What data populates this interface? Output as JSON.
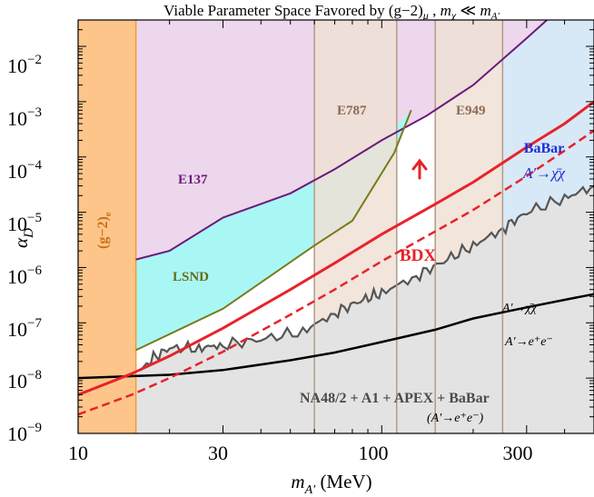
{
  "chart_data": {
    "type": "line",
    "title": "Viable Parameter Space Favored by (g−2)μ ,   mχ ≪ m A′",
    "xlabel": "mA′ (MeV)",
    "ylabel": "αD",
    "xscale": "log",
    "yscale": "log",
    "xlim": [
      10,
      500
    ],
    "ylim": [
      1e-09,
      0.03
    ],
    "x_ticks": [
      {
        "value": 10,
        "label": "10"
      },
      {
        "value": 30,
        "label": "30"
      },
      {
        "value": 100,
        "label": "100"
      },
      {
        "value": 300,
        "label": "300"
      }
    ],
    "y_ticks": [
      {
        "value": 1e-09,
        "base": "10",
        "exp": "−9"
      },
      {
        "value": 1e-08,
        "base": "10",
        "exp": "−8"
      },
      {
        "value": 1e-07,
        "base": "10",
        "exp": "−7"
      },
      {
        "value": 1e-06,
        "base": "10",
        "exp": "−6"
      },
      {
        "value": 1e-05,
        "base": "10",
        "exp": "−5"
      },
      {
        "value": 0.0001,
        "base": "10",
        "exp": "−4"
      },
      {
        "value": 0.001,
        "base": "10",
        "exp": "−3"
      },
      {
        "value": 0.01,
        "base": "10",
        "exp": "−2"
      }
    ],
    "regions": [
      {
        "name": "(g−2)e",
        "color": "#fdc58a",
        "edge": "#f29a33",
        "x_range": [
          10,
          15.5
        ]
      },
      {
        "name": "E137",
        "color": "#ecd7ec",
        "boundary": [
          [
            15.5,
            1.4e-06
          ],
          [
            20,
            2e-06
          ],
          [
            30,
            8e-06
          ],
          [
            50,
            2.2e-05
          ],
          [
            70,
            6e-05
          ],
          [
            100,
            0.0002
          ],
          [
            140,
            0.00055
          ],
          [
            200,
            0.002
          ],
          [
            300,
            0.014
          ],
          [
            350,
            0.03
          ]
        ]
      },
      {
        "name": "LSND",
        "color": "#a9f7f5",
        "boundary": [
          [
            15.5,
            3.2e-08
          ],
          [
            30,
            1.8e-07
          ],
          [
            60,
            2.5e-06
          ],
          [
            80,
            7e-06
          ],
          [
            110,
            0.00012
          ],
          [
            125,
            0.0007
          ]
        ]
      },
      {
        "name": "BaBar A′→χ̄χ",
        "color": "#d7e8f7",
        "x_range": [
          250,
          500
        ]
      },
      {
        "name": "E787",
        "color": "#efe0d6",
        "edge": "#b59a86",
        "x_range": [
          60,
          112
        ]
      },
      {
        "name": "E949",
        "color": "#efe0d6",
        "edge": "#b59a86",
        "x_range": [
          150,
          250
        ]
      },
      {
        "name": "NA48/2 + A1 + APEX + BaBar (A′→e⁺e⁻)",
        "color": "#e3e3e3",
        "boundary": [
          [
            10,
            1e-08
          ],
          [
            15.5,
            1.1e-08
          ],
          [
            17,
            2e-08
          ],
          [
            20,
            3.5e-08
          ],
          [
            25,
            3.5e-08
          ],
          [
            30,
            4e-08
          ],
          [
            40,
            5e-08
          ],
          [
            55,
            7e-08
          ],
          [
            70,
            1.5e-07
          ],
          [
            85,
            2.5e-07
          ],
          [
            100,
            3.5e-07
          ],
          [
            130,
            7e-07
          ],
          [
            160,
            1.3e-06
          ],
          [
            200,
            2.5e-06
          ],
          [
            250,
            5e-06
          ],
          [
            300,
            1e-05
          ],
          [
            400,
            1.8e-05
          ],
          [
            500,
            3e-05
          ]
        ]
      }
    ],
    "series": [
      {
        "name": "BDX",
        "color": "#e8222a",
        "style": "solid",
        "x": [
          10,
          15,
          20,
          30,
          50,
          70,
          100,
          150,
          200,
          300,
          400,
          500
        ],
        "y": [
          5e-09,
          1.2e-08,
          2.5e-08,
          8e-08,
          4e-07,
          1.2e-06,
          4e-06,
          1.4e-05,
          3.5e-05,
          0.00015,
          0.0004,
          0.001
        ]
      },
      {
        "name": "BDX projection",
        "color": "#e8222a",
        "style": "dashed",
        "x": [
          10,
          15,
          20,
          30,
          50,
          70,
          100,
          150,
          200,
          300,
          400,
          500
        ],
        "y": [
          2.2e-09,
          5e-09,
          1e-08,
          3e-08,
          1.4e-07,
          4e-07,
          1.3e-06,
          4.5e-06,
          1.1e-05,
          4.5e-05,
          0.00013,
          0.0003
        ]
      },
      {
        "name": "A′→χ̄χ / A′→e⁺e⁻",
        "color": "#000000",
        "style": "solid",
        "x": [
          10,
          20,
          30,
          50,
          70,
          100,
          150,
          200,
          300,
          400,
          500
        ],
        "y": [
          1e-08,
          1.15e-08,
          1.4e-08,
          2.1e-08,
          2.9e-08,
          4.5e-08,
          7.5e-08,
          1.2e-07,
          1.9e-07,
          2.6e-07,
          3.3e-07
        ]
      }
    ],
    "annotations": [
      {
        "text": "E137",
        "color": "#6b1a7a"
      },
      {
        "text": "LSND",
        "color": "#6b6b16"
      },
      {
        "text": "E787",
        "color": "#8e6a52"
      },
      {
        "text": "E949",
        "color": "#8e6a52"
      },
      {
        "text": "BaBar",
        "color": "#1c2fd8"
      },
      {
        "text": "A′→χ̄χ",
        "color": "#1c2fd8"
      },
      {
        "text": "(g−2)e",
        "color": "#c9711b"
      },
      {
        "text": "BDX",
        "color": "#e8222a"
      },
      {
        "text": "A′→χ̄χ",
        "color": "#000000"
      },
      {
        "text": "A′→e⁺e⁻",
        "color": "#000000"
      },
      {
        "text": "NA48/2 + A1 + APEX + BaBar",
        "color": "#4a4a4a"
      },
      {
        "text": "(A′→e⁺e⁻)",
        "color": "#000000"
      }
    ]
  },
  "text": {
    "title_main": "Viable Parameter Space Favored by (g−2)",
    "title_mu": "μ",
    "title_sep": " ,   ",
    "title_m1": "m",
    "title_chi": "χ",
    "title_ll": " ≪ ",
    "title_m2": "m",
    "title_A": "A′",
    "xlabel_m": "m",
    "xlabel_A": "A′",
    "xlabel_unit": " (MeV)",
    "ylabel_alpha": "α",
    "ylabel_D": "D",
    "label_e137": "E137",
    "label_lsnd": "LSND",
    "label_e787": "E787",
    "label_e949": "E949",
    "label_babar": "BaBar",
    "label_babar_proc": "A′→",
    "label_babar_chi": "χ̄χ",
    "label_ge_main": "(g−2)",
    "label_ge_sub": "e",
    "label_bdx": "BDX",
    "label_inv_A": "A′→",
    "label_inv_chi": "χ̄χ",
    "label_vis_A": "A′→",
    "label_vis_e": "e⁺e⁻",
    "label_na48": "NA48/2 + A1 + APEX + BaBar",
    "label_na48_proc": "(A′→e⁺e⁻)"
  }
}
